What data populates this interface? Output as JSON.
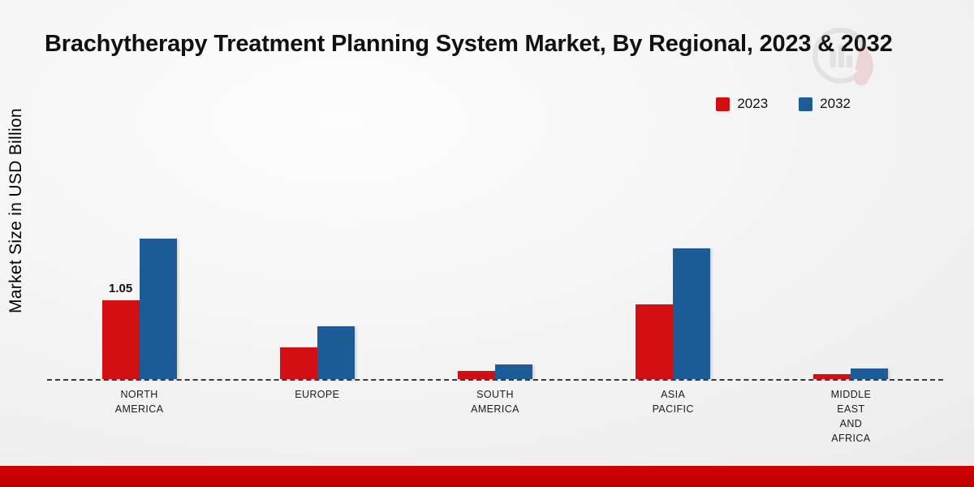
{
  "title": "Brachytherapy Treatment Planning System Market, By Regional, 2023 & 2032",
  "ylabel": "Market Size in USD Billion",
  "legend": [
    {
      "label": "2023",
      "color": "#d20f12"
    },
    {
      "label": "2032",
      "color": "#1e5c97"
    }
  ],
  "colors": {
    "series_2023": "#d20f12",
    "series_2032": "#1e5c97",
    "footer_band": "#c60000",
    "baseline": "#3a3a3a"
  },
  "chart_data": {
    "type": "bar",
    "title": "Brachytherapy Treatment Planning System Market, By Regional, 2023 & 2032",
    "xlabel": "",
    "ylabel": "Market Size in USD Billion",
    "categories": [
      "NORTH AMERICA",
      "EUROPE",
      "SOUTH AMERICA",
      "ASIA PACIFIC",
      "MIDDLE EAST AND AFRICA"
    ],
    "category_lines": [
      [
        "NORTH",
        "AMERICA"
      ],
      [
        "EUROPE"
      ],
      [
        "SOUTH",
        "AMERICA"
      ],
      [
        "ASIA",
        "PACIFIC"
      ],
      [
        "MIDDLE",
        "EAST",
        "AND",
        "AFRICA"
      ]
    ],
    "series": [
      {
        "name": "2023",
        "color": "#d20f12",
        "values": [
          1.05,
          0.42,
          0.11,
          1.0,
          0.07
        ]
      },
      {
        "name": "2032",
        "color": "#1e5c97",
        "values": [
          1.88,
          0.71,
          0.2,
          1.75,
          0.14
        ]
      }
    ],
    "bar_labels": [
      {
        "series": "2023",
        "category_index": 0,
        "text": "1.05"
      }
    ],
    "ylim": [
      0,
      2.0
    ],
    "grid": false,
    "baseline_style": "dashed",
    "legend_position": "top-right"
  }
}
